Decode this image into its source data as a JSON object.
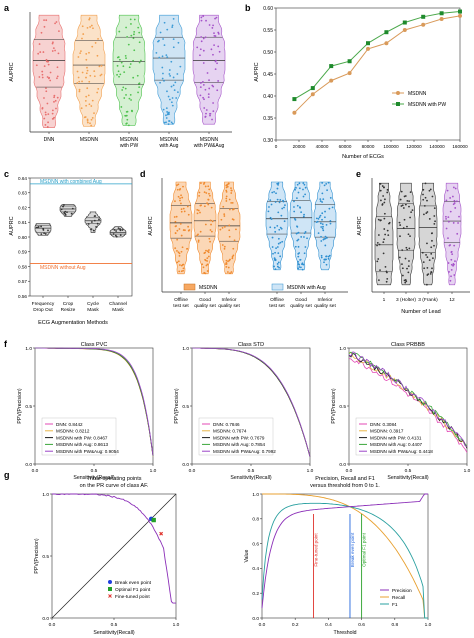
{
  "panels": {
    "a": {
      "letter": "a",
      "ylabel": "AUPRC",
      "categories": [
        "DNN",
        "MSDNN",
        "MSDNN\nwith PW",
        "MSDNN\nwith Aug",
        "MSDNN\nwith PW&Aug"
      ],
      "colors": [
        "#e8706f",
        "#f2a04f",
        "#4fc24f",
        "#3d9bd6",
        "#a553c9"
      ],
      "fills": [
        "#f7d2d1",
        "#fbe2c8",
        "#d5f0d2",
        "#cfe4f4",
        "#e6d3f1"
      ]
    },
    "b": {
      "letter": "b",
      "ylabel": "AUPRC",
      "xlabel": "Number of ECGs",
      "yticks": [
        "0.30",
        "0.35",
        "0.40",
        "0.45",
        "0.50",
        "0.55",
        "0.60"
      ],
      "xticks": [
        "0",
        "20000",
        "40000",
        "60000",
        "80000",
        "100000",
        "120000",
        "140000",
        "160000"
      ],
      "legend": [
        "MSDNN",
        "MSDNN with PW"
      ]
    },
    "c": {
      "letter": "c",
      "ylabel": "AUPRC",
      "xlabel": "ECG Augmentation Methods",
      "yticks": [
        "0.56",
        "0.57",
        "0.58",
        "0.59",
        "0.60",
        "0.61",
        "0.62",
        "0.63",
        "0.64"
      ],
      "categories": [
        "Frequency\nDrop Out",
        "Crop\nResize",
        "Cycle\nMask",
        "Channel\nMask"
      ],
      "ref_top_label": "MSDNN with combined Aug",
      "ref_bottom_label": "MSDNN without Aug"
    },
    "d": {
      "letter": "d",
      "ylabel": "AUPRC",
      "categories": [
        "Offline\ntest set",
        "Good\nquality set",
        "Inferior\nquality set",
        "Offline\ntest set",
        "Good\nquality set",
        "Inferior\nquality set"
      ],
      "legend": [
        "MSDNN",
        "MSDNN  with Aug"
      ]
    },
    "e": {
      "letter": "e",
      "ylabel": "AUPRC",
      "xlabel": "Number of Lead",
      "categories": [
        "1",
        "3 (Holter)",
        "3 (Frank)",
        "12"
      ]
    },
    "f": {
      "letter": "f",
      "xlabel": "Sensitivity(Recall)",
      "ylabel": "PPV(Precision)",
      "ticks": [
        "0.0",
        "0.5",
        "1.0"
      ],
      "subplots": [
        {
          "title": "Class PVC",
          "legend": [
            "DNN: 0.8442",
            "MSDNN: 0.8212",
            "MSDNN with PW: 0.8467",
            "MSDNN with Aug: 0.8613",
            "MSDNN with PW&Aug: 0.9054"
          ]
        },
        {
          "title": "Class STD",
          "legend": [
            "DNN: 0.7846",
            "MSDNN: 0.7674",
            "MSDNN with PW: 0.7679",
            "MSDNN with Aug: 0.7854",
            "MSDNN with PW&Aug: 0.7992"
          ]
        },
        {
          "title": "Class PRBBB",
          "legend": [
            "DNN: 0.3084",
            "MSDNN: 0.3917",
            "MSDNN with PW: 0.4131",
            "MSDNN with Aug: 0.4407",
            "MSDNN with PW&Aug: 0.4418"
          ]
        }
      ]
    },
    "g": {
      "letter": "g",
      "left_title": "Three operating points\non the PR curve of class AF.",
      "left_xlabel": "Sensitivity(Recall)",
      "left_ylabel": "PPV(Precision)",
      "left_ticks": [
        "0.0",
        "0.5",
        "1.0"
      ],
      "left_legend": [
        "Break even point",
        "Optimal F1 point",
        "Fine-tuned point"
      ],
      "right_title": "Precision, Recall and F1\nversus threshold from 0 to 1.",
      "right_xlabel": "Threshold",
      "right_ylabel": "Value",
      "right_ticks": [
        "0.0",
        "0.2",
        "0.4",
        "0.6",
        "0.8",
        "1.0"
      ],
      "right_legend": [
        "Precision",
        "Recall",
        "F1"
      ],
      "vlines": [
        {
          "label": "Fine-tuned point",
          "threshold": 0.31,
          "color": "#e0332d"
        },
        {
          "label": "Break even point",
          "threshold": 0.53,
          "color": "#2266dd"
        },
        {
          "label": "Optimal F1 point",
          "threshold": 0.6,
          "color": "#2aa02a"
        }
      ]
    }
  },
  "colors": {
    "pr_curves": [
      "#e34ab6",
      "#e8b64a",
      "#1a1a1a",
      "#3aa63a",
      "#9b44c8"
    ],
    "msdnn": "#f08a2e",
    "aug": "#2e8fd0",
    "gray": "#9a9a9a",
    "ref_top": "#2aa0c8",
    "ref_bottom": "#f07030"
  },
  "chart_data": [
    {
      "panel": "a",
      "type": "violin",
      "categories": [
        "DNN",
        "MSDNN",
        "MSDNN with PW",
        "MSDNN with Aug",
        "MSDNN with PW&Aug"
      ],
      "ylim": [
        0,
        1
      ],
      "median": [
        0.6,
        0.56,
        0.59,
        0.62,
        0.6
      ],
      "q1": [
        0.37,
        0.4,
        0.39,
        0.43,
        0.41
      ],
      "q3": [
        0.78,
        0.77,
        0.8,
        0.8,
        0.8
      ],
      "min": [
        0.02,
        0.03,
        0.04,
        0.05,
        0.05
      ],
      "max": [
        0.99,
        0.99,
        0.99,
        0.99,
        0.99
      ]
    },
    {
      "panel": "b",
      "type": "line",
      "xlabel": "Number of ECGs",
      "ylabel": "AUPRC",
      "ylim": [
        0.3,
        0.6
      ],
      "x": [
        16000,
        32000,
        48000,
        64000,
        80000,
        96000,
        112000,
        128000,
        144000,
        160000
      ],
      "series": [
        {
          "name": "MSDNN",
          "values": [
            0.362,
            0.404,
            0.435,
            0.452,
            0.507,
            0.52,
            0.55,
            0.562,
            0.575,
            0.582
          ]
        },
        {
          "name": "MSDNN with PW",
          "values": [
            0.393,
            0.418,
            0.468,
            0.479,
            0.52,
            0.545,
            0.567,
            0.58,
            0.588,
            0.592
          ]
        }
      ]
    },
    {
      "panel": "c",
      "type": "violin",
      "categories": [
        "Frequency Drop Out",
        "Crop Resize",
        "Cycle Mask",
        "Channel Mask"
      ],
      "ylim": [
        0.56,
        0.64
      ],
      "median": [
        0.606,
        0.619,
        0.611,
        0.603
      ],
      "q1": [
        0.603,
        0.617,
        0.609,
        0.602
      ],
      "q3": [
        0.608,
        0.621,
        0.613,
        0.605
      ],
      "min": [
        0.601,
        0.614,
        0.603,
        0.6
      ],
      "max": [
        0.609,
        0.622,
        0.617,
        0.607
      ],
      "ref_lines": [
        {
          "name": "MSDNN with combined Aug",
          "value": 0.636
        },
        {
          "name": "MSDNN without Aug",
          "value": 0.582
        }
      ]
    },
    {
      "panel": "d",
      "type": "violin",
      "ylim": [
        0,
        1
      ],
      "groups": [
        "MSDNN",
        "MSDNN with Aug"
      ],
      "categories": [
        "Offline test set",
        "Good quality set",
        "Inferior quality set"
      ],
      "series": [
        {
          "name": "MSDNN",
          "median": [
            0.58,
            0.6,
            0.55
          ]
        },
        {
          "name": "MSDNN with Aug",
          "median": [
            0.62,
            0.63,
            0.59
          ]
        }
      ]
    },
    {
      "panel": "e",
      "type": "violin",
      "categories": [
        "1",
        "3 (Holter)",
        "3 (Frank)",
        "12"
      ],
      "ylim": [
        0,
        1
      ],
      "median": [
        0.4,
        0.55,
        0.56,
        0.62
      ],
      "q1": [
        0.15,
        0.35,
        0.33,
        0.42
      ],
      "q3": [
        0.66,
        0.78,
        0.76,
        0.8
      ]
    },
    {
      "panel": "f",
      "type": "line",
      "xlabel": "Sensitivity(Recall)",
      "ylabel": "PPV(Precision)",
      "subplots": [
        {
          "title": "Class PVC",
          "auprc": [
            0.8442,
            0.8212,
            0.8467,
            0.8613,
            0.9054
          ]
        },
        {
          "title": "Class STD",
          "auprc": [
            0.7846,
            0.7674,
            0.7679,
            0.7854,
            0.7992
          ]
        },
        {
          "title": "Class PRBBB",
          "auprc": [
            0.3084,
            0.3917,
            0.4131,
            0.4407,
            0.4418
          ]
        }
      ]
    },
    {
      "panel": "g",
      "type": "line",
      "xlabel": "Threshold",
      "ylabel": "Value",
      "operating_points": [
        {
          "name": "Break even point",
          "recall": 0.8,
          "precision": 0.8
        },
        {
          "name": "Optimal F1 point",
          "recall": 0.82,
          "precision": 0.79
        },
        {
          "name": "Fine-tuned point",
          "recall": 0.88,
          "precision": 0.68
        }
      ]
    }
  ]
}
